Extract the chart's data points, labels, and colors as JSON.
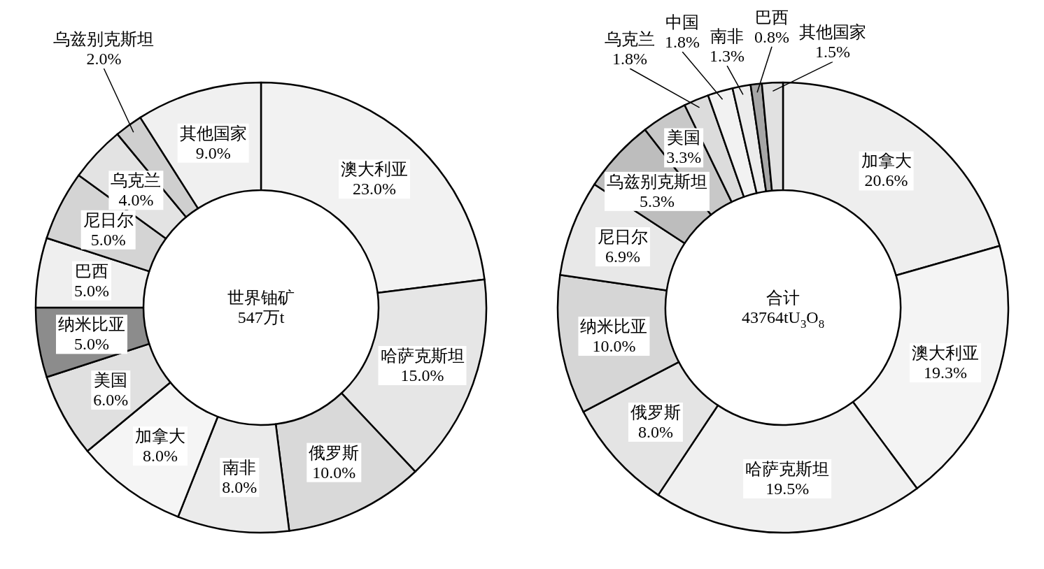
{
  "chart_data": [
    {
      "type": "donut",
      "categories": [
        "澳大利亚",
        "哈萨克斯坦",
        "俄罗斯",
        "南非",
        "加拿大",
        "美国",
        "纳米比亚",
        "巴西",
        "尼日尔",
        "乌克兰",
        "乌兹别克斯坦",
        "其他国家"
      ],
      "values": [
        23.0,
        15.0,
        10.0,
        8.0,
        8.0,
        6.0,
        5.0,
        5.0,
        5.0,
        4.0,
        2.0,
        9.0
      ],
      "value_labels": [
        "23.0%",
        "15.0%",
        "10.0%",
        "8.0%",
        "8.0%",
        "6.0%",
        "5.0%",
        "5.0%",
        "5.0%",
        "4.0%",
        "2.0%",
        "9.0%"
      ],
      "colors": [
        "#f2f2f2",
        "#e6e6e6",
        "#d9d9d9",
        "#ebebeb",
        "#f5f5f5",
        "#e0e0e0",
        "#8c8c8c",
        "#efefef",
        "#d4d4d4",
        "#e3e3e3",
        "#cfcfcf",
        "#f0f0f0"
      ],
      "annotations": [
        "世界铀矿",
        "547万t"
      ]
    },
    {
      "type": "donut",
      "categories": [
        "加拿大",
        "澳大利亚",
        "哈萨克斯坦",
        "俄罗斯",
        "纳米比亚",
        "尼日尔",
        "乌兹别克斯坦",
        "美国",
        "乌克兰",
        "中国",
        "南非",
        "巴西",
        "其他国家"
      ],
      "values": [
        20.6,
        19.3,
        19.5,
        8.0,
        10.0,
        6.9,
        5.3,
        3.3,
        1.8,
        1.8,
        1.3,
        0.8,
        1.5
      ],
      "value_labels": [
        "20.6%",
        "19.3%",
        "19.5%",
        "8.0%",
        "10.0%",
        "6.9%",
        "5.3%",
        "3.3%",
        "1.8%",
        "1.8%",
        "1.3%",
        "0.8%",
        "1.5%"
      ],
      "colors": [
        "#eeeeee",
        "#f4f4f4",
        "#f0f0f0",
        "#e4e4e4",
        "#d6d6d6",
        "#e8e8e8",
        "#bdbdbd",
        "#c8c8c8",
        "#dcdcdc",
        "#f2f2f2",
        "#ececec",
        "#a6a6a6",
        "#e1e1e1"
      ],
      "annotations": [
        "合计",
        "43764tU$_{3}$O$_{8}$"
      ]
    }
  ]
}
